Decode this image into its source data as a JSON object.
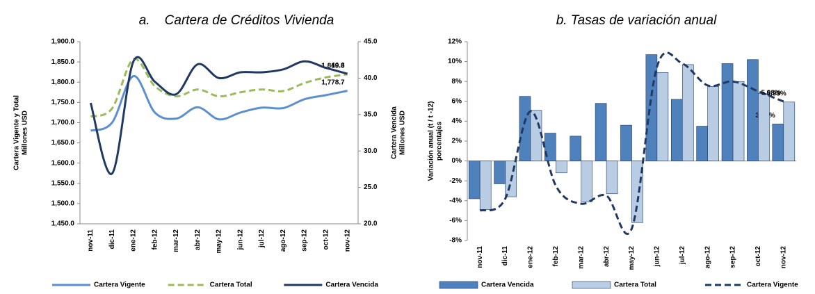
{
  "chart_data": [
    {
      "type": "line",
      "title": "a.    Cartera de Créditos Vivienda",
      "categories": [
        "nov-11",
        "dic-11",
        "ene-12",
        "feb-12",
        "mar-12",
        "abr-12",
        "may-12",
        "jun-12",
        "jul-12",
        "ago-12",
        "sep-12",
        "oct-12",
        "nov-12"
      ],
      "y_label": [
        "Cartera Vigente y Total",
        "Millones USD"
      ],
      "y2_label": [
        "Cartera Vencida",
        "Millones USD"
      ],
      "ylim": [
        1450,
        1900
      ],
      "yticks": [
        {
          "value": 1450,
          "label": "1,450.0"
        },
        {
          "value": 1500,
          "label": "1,500.0"
        },
        {
          "value": 1550,
          "label": "1,550.0"
        },
        {
          "value": 1600,
          "label": "1,600.0"
        },
        {
          "value": 1650,
          "label": "1,650.0"
        },
        {
          "value": 1700,
          "label": "1,700.0"
        },
        {
          "value": 1750,
          "label": "1,750.0"
        },
        {
          "value": 1800,
          "label": "1,800.0"
        },
        {
          "value": 1850,
          "label": "1,850.0"
        },
        {
          "value": 1900,
          "label": "1,900.0"
        }
      ],
      "y2lim": [
        20,
        45
      ],
      "y2ticks": [
        {
          "value": 20,
          "label": "20.0"
        },
        {
          "value": 25,
          "label": "25.0"
        },
        {
          "value": 30,
          "label": "30.0"
        },
        {
          "value": 35,
          "label": "35.0"
        },
        {
          "value": 40,
          "label": "40.0"
        },
        {
          "value": 45,
          "label": "45.0"
        }
      ],
      "legend": "bottom",
      "series": [
        {
          "name": "Cartera Vigente",
          "color": "#5b8fd0",
          "values": [
            1680,
            1700,
            1815,
            1725,
            1710,
            1738,
            1708,
            1725,
            1737,
            1736,
            1758,
            1768,
            1778.7
          ],
          "value_labels": [
            null,
            null,
            null,
            null,
            null,
            null,
            null,
            null,
            null,
            null,
            null,
            null,
            "1,778.7"
          ]
        },
        {
          "name": "Cartera Total",
          "color": "#9bbb59",
          "dash": true,
          "values": [
            1715,
            1735,
            1857,
            1790,
            1765,
            1782,
            1765,
            1775,
            1782,
            1778,
            1798,
            1812,
            1819.3
          ],
          "value_labels": [
            null,
            null,
            null,
            null,
            null,
            null,
            null,
            null,
            null,
            null,
            null,
            null,
            "1,819.3"
          ]
        },
        {
          "name": "Cartera Vencida",
          "color": "#1f3864",
          "axis": "y2",
          "values": [
            36.6,
            26.9,
            42.3,
            39.5,
            37.8,
            41.9,
            40.0,
            40.8,
            40.8,
            41.2,
            42.3,
            41.4,
            40.6
          ],
          "value_labels": [
            null,
            null,
            null,
            null,
            null,
            null,
            null,
            null,
            null,
            null,
            null,
            null,
            "40.6"
          ]
        }
      ]
    },
    {
      "type": "bar",
      "title": "b. Tasas de variación anual",
      "categories": [
        "nov-11",
        "dic-11",
        "ene-12",
        "feb-12",
        "mar-12",
        "abr-12",
        "may-12",
        "jun-12",
        "jul-12",
        "ago-12",
        "sep-12",
        "oct-12",
        "nov-12"
      ],
      "y_label": [
        "Variación anual (t / t -12)",
        "porcentajes"
      ],
      "ylim": [
        -8,
        12
      ],
      "yticks": [
        {
          "value": -8,
          "label": "-8%"
        },
        {
          "value": -6,
          "label": "-6%"
        },
        {
          "value": -4,
          "label": "-4%"
        },
        {
          "value": -2,
          "label": "-2%"
        },
        {
          "value": 0,
          "label": "0%"
        },
        {
          "value": 2,
          "label": "2%"
        },
        {
          "value": 4,
          "label": "4%"
        },
        {
          "value": 6,
          "label": "6%"
        },
        {
          "value": 8,
          "label": "8%"
        },
        {
          "value": 10,
          "label": "10%"
        },
        {
          "value": 12,
          "label": "12%"
        }
      ],
      "legend": "bottom",
      "series": [
        {
          "name": "Cartera Vencida",
          "color": "#4f81bd",
          "values": [
            -3.8,
            -2.3,
            6.5,
            2.8,
            2.5,
            5.8,
            3.6,
            10.7,
            6.2,
            3.5,
            9.8,
            10.2,
            3.72
          ],
          "value_labels": [
            null,
            null,
            null,
            null,
            null,
            null,
            null,
            null,
            null,
            null,
            null,
            null,
            "3.72%"
          ]
        },
        {
          "name": "Cartera Total",
          "color": "#b8cce4",
          "values": [
            -4.9,
            -3.6,
            5.1,
            -1.2,
            -4.1,
            -3.3,
            -6.2,
            8.9,
            9.7,
            7.5,
            8.0,
            6.8,
            5.93
          ],
          "value_labels": [
            null,
            null,
            null,
            null,
            null,
            null,
            null,
            null,
            null,
            null,
            null,
            null,
            "5.93%"
          ]
        },
        {
          "name": "Cartera Vigente",
          "color": "#1f3864",
          "type": "line",
          "dash": true,
          "values": [
            -5.0,
            -3.8,
            5.0,
            -2.5,
            -4.3,
            -3.5,
            -6.8,
            9.5,
            9.8,
            7.6,
            8.0,
            7.0,
            5.98
          ],
          "value_labels": [
            null,
            null,
            null,
            null,
            null,
            null,
            null,
            null,
            null,
            null,
            null,
            null,
            "5.98%"
          ]
        }
      ]
    }
  ]
}
